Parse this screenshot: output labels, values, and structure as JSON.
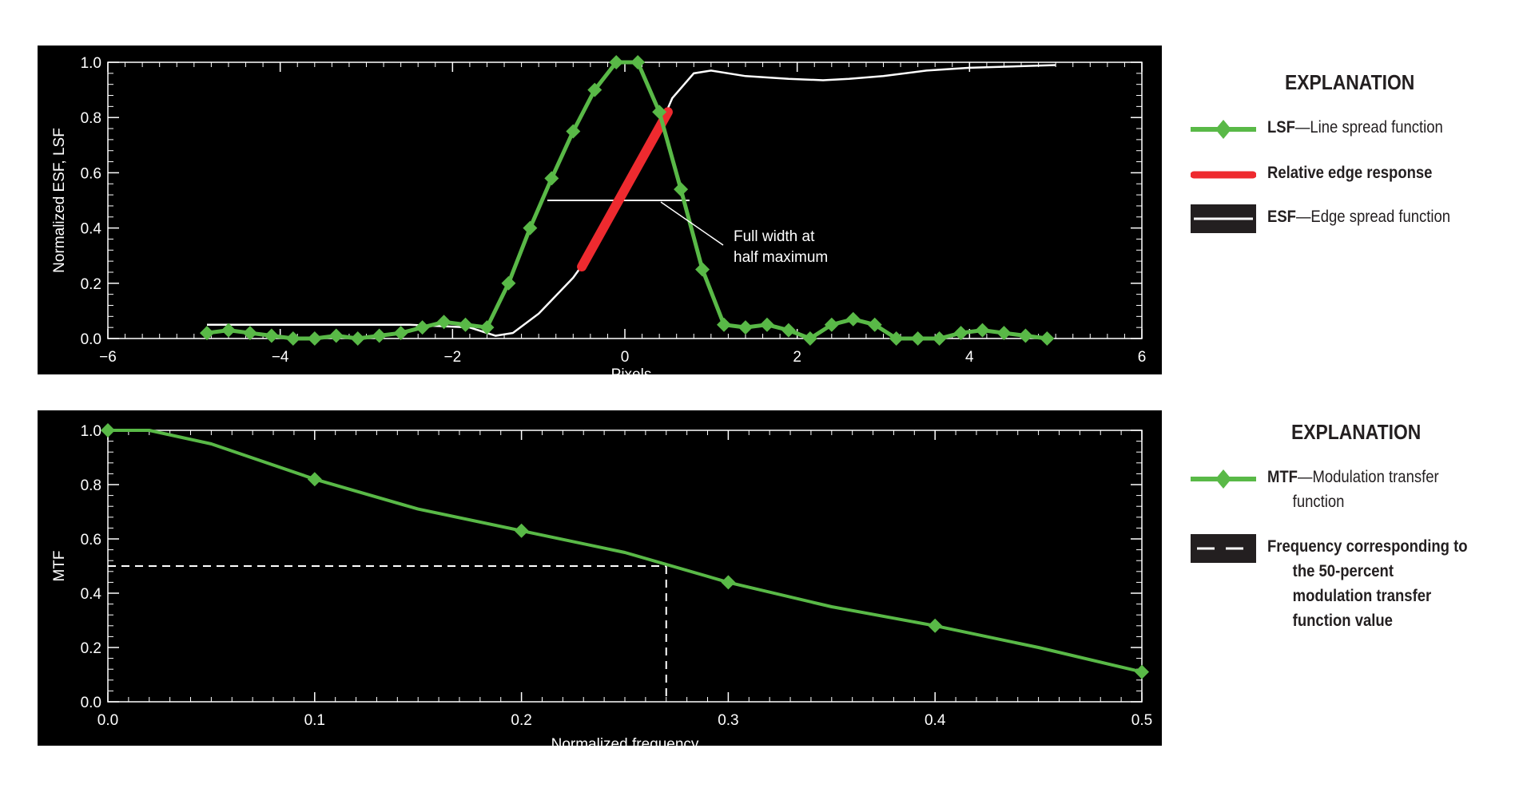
{
  "chart_data": [
    {
      "type": "line",
      "xlabel": "Pixels",
      "ylabel": "Normalized ESF, LSF",
      "xlim": [
        -6,
        6
      ],
      "ylim": [
        0,
        1
      ],
      "xticks": [
        "−6",
        "−4",
        "−2",
        "0",
        "2",
        "4",
        "6"
      ],
      "yticks": [
        "0.0",
        "0.2",
        "0.4",
        "0.6",
        "0.8",
        "1.0"
      ],
      "background": "#000000",
      "annotation": {
        "line1": "Full width at",
        "line2": "half maximum"
      },
      "fwhm": {
        "x1": -0.9,
        "x2": 0.75,
        "y": 0.5
      },
      "series": [
        {
          "name": "LSF",
          "color": "#59b947",
          "marker": "diamond",
          "x": [
            -4.85,
            -4.6,
            -4.35,
            -4.1,
            -3.85,
            -3.6,
            -3.35,
            -3.1,
            -2.85,
            -2.6,
            -2.35,
            -2.1,
            -1.85,
            -1.6,
            -1.35,
            -1.1,
            -0.85,
            -0.6,
            -0.35,
            -0.1,
            0.15,
            0.4,
            0.65,
            0.9,
            1.15,
            1.4,
            1.65,
            1.9,
            2.15,
            2.4,
            2.65,
            2.9,
            3.15,
            3.4,
            3.65,
            3.9,
            4.15,
            4.4,
            4.65,
            4.9
          ],
          "y": [
            0.02,
            0.03,
            0.02,
            0.01,
            0.0,
            0.0,
            0.01,
            0.0,
            0.01,
            0.02,
            0.04,
            0.06,
            0.05,
            0.04,
            0.2,
            0.4,
            0.58,
            0.75,
            0.9,
            1.0,
            1.0,
            0.82,
            0.54,
            0.25,
            0.05,
            0.04,
            0.05,
            0.03,
            0.0,
            0.05,
            0.07,
            0.05,
            0.0,
            0.0,
            0.0,
            0.02,
            0.03,
            0.02,
            0.01,
            0.0
          ]
        },
        {
          "name": "Relative edge response",
          "color": "#ee2a2f",
          "x": [
            -0.5,
            0.5
          ],
          "y": [
            0.26,
            0.82
          ]
        },
        {
          "name": "ESF",
          "color": "#ffffff",
          "x": [
            -4.85,
            -3.5,
            -2.5,
            -1.8,
            -1.5,
            -1.3,
            -1.0,
            -0.6,
            -0.3,
            0.0,
            0.3,
            0.55,
            0.8,
            1.0,
            1.4,
            1.9,
            2.3,
            2.6,
            3.0,
            3.5,
            4.0,
            4.5,
            5.0
          ],
          "y": [
            0.05,
            0.05,
            0.05,
            0.04,
            0.01,
            0.02,
            0.09,
            0.22,
            0.35,
            0.52,
            0.69,
            0.87,
            0.96,
            0.97,
            0.95,
            0.94,
            0.935,
            0.94,
            0.95,
            0.97,
            0.98,
            0.985,
            0.99
          ]
        }
      ]
    },
    {
      "type": "line",
      "xlabel": "Normalized frequency",
      "ylabel": "MTF",
      "xlim": [
        0,
        0.5
      ],
      "ylim": [
        0,
        1
      ],
      "xticks": [
        "0.0",
        "0.1",
        "0.2",
        "0.3",
        "0.4",
        "0.5"
      ],
      "yticks": [
        "0.0",
        "0.2",
        "0.4",
        "0.6",
        "0.8",
        "1.0"
      ],
      "background": "#000000",
      "mtf50": {
        "x": 0.27,
        "y": 0.5
      },
      "series": [
        {
          "name": "MTF",
          "color": "#59b947",
          "marker": "diamond",
          "x": [
            0.0,
            0.02,
            0.05,
            0.1,
            0.15,
            0.2,
            0.25,
            0.3,
            0.35,
            0.4,
            0.45,
            0.5
          ],
          "y": [
            1.0,
            1.0,
            0.95,
            0.82,
            0.71,
            0.63,
            0.55,
            0.44,
            0.35,
            0.28,
            0.2,
            0.11
          ],
          "marker_indices": [
            0,
            3,
            5,
            7,
            9,
            11
          ]
        }
      ]
    }
  ],
  "legends": [
    {
      "title": "EXPLANATION",
      "items": [
        {
          "bold": "LSF",
          "text": "—Line spread function"
        },
        {
          "bold": "Relative edge response",
          "text": ""
        },
        {
          "bold": "ESF",
          "text": "—Edge spread function"
        }
      ]
    },
    {
      "title": "EXPLANATION",
      "items": [
        {
          "bold": "MTF",
          "text": "—Modulation transfer",
          "text2": "function"
        },
        {
          "bold": "Frequency corresponding to",
          "text2": "the 50-percent",
          "text3": "modulation transfer",
          "text4": "function value"
        }
      ]
    }
  ]
}
